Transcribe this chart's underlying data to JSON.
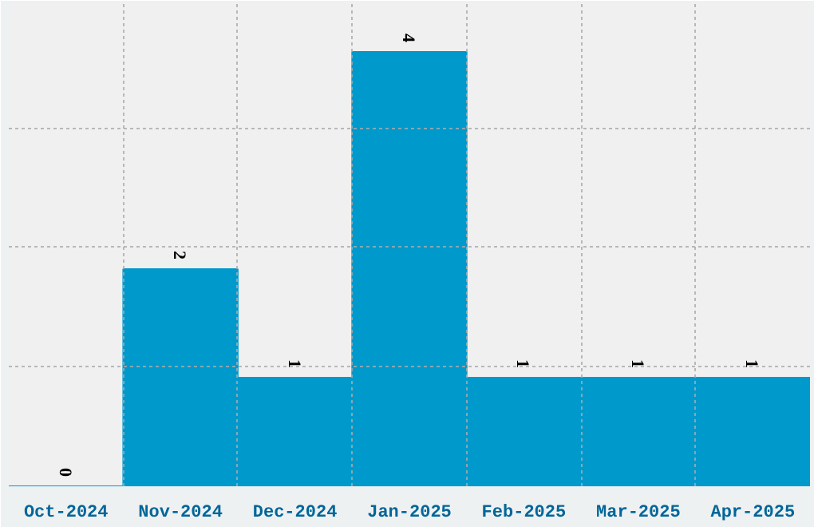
{
  "chart_data": {
    "type": "bar",
    "categories": [
      "Oct-2024",
      "Nov-2024",
      "Dec-2024",
      "Jan-2025",
      "Feb-2025",
      "Mar-2025",
      "Apr-2025"
    ],
    "values": [
      0,
      2,
      1,
      4,
      1,
      1,
      1
    ],
    "color": "#0099cc",
    "ylim": [
      0,
      4.47
    ],
    "yticks": [
      {
        "value": 1.1,
        "label": null
      },
      {
        "value": 2.2,
        "label": null
      },
      {
        "value": 3.3,
        "label": null
      }
    ],
    "tick_labels": "x",
    "grid": true,
    "data_labels": true
  }
}
